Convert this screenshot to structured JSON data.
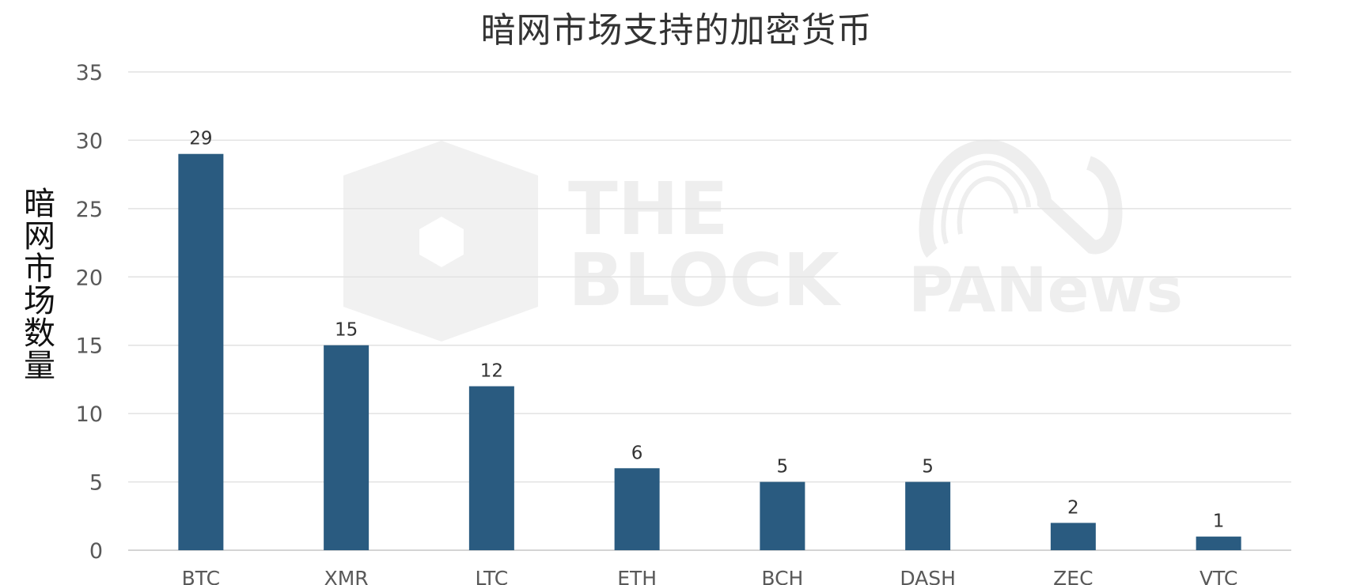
{
  "chart_data": {
    "type": "bar",
    "title": "暗网市场支持的加密货币",
    "xlabel": "",
    "ylabel": "暗网市场数量",
    "categories": [
      "BTC",
      "XMR",
      "LTC",
      "ETH",
      "BCH",
      "DASH",
      "ZEC",
      "VTC"
    ],
    "values": [
      29,
      15,
      12,
      6,
      5,
      5,
      2,
      1
    ],
    "ylim": [
      0,
      35
    ],
    "yticks": [
      0,
      5,
      10,
      15,
      20,
      25,
      30,
      35
    ],
    "grid": true,
    "bar_color": "#2a5b80",
    "data_labels": true
  },
  "watermarks": {
    "theblock_line1": "THE",
    "theblock_line2": "BLOCK",
    "panews": "PANews"
  }
}
